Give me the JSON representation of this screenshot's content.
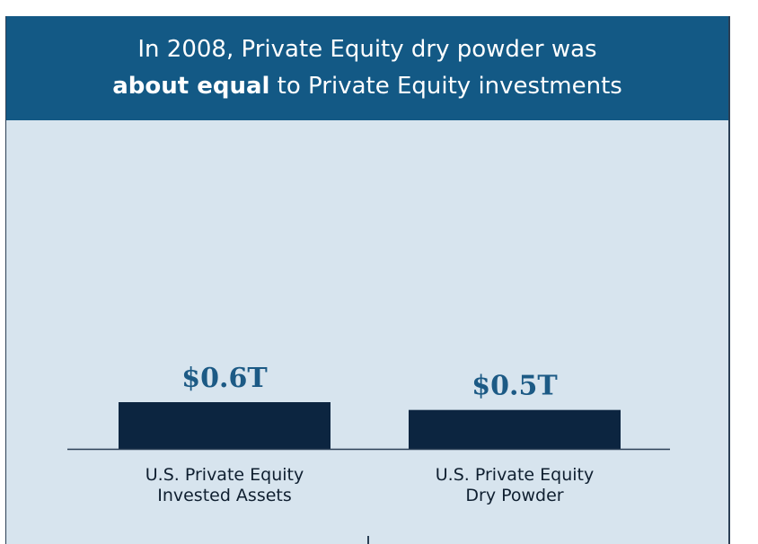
{
  "header": {
    "line1": "In 2008, Private Equity dry powder was",
    "line2_bold": "about equal",
    "line2_rest": " to Private Equity investments"
  },
  "colors": {
    "banner": "#135985",
    "panel": "#d7e4ee",
    "bar": "#0c2540",
    "value_label": "#1c5a85"
  },
  "chart_data": {
    "type": "bar",
    "categories": [
      [
        "U.S. Private Equity",
        "Invested Assets"
      ],
      [
        "U.S. Private Equity",
        "Dry Powder"
      ]
    ],
    "values": [
      0.6,
      0.5
    ],
    "data_labels": [
      "$0.6T",
      "$0.5T"
    ],
    "unit": "T",
    "title": "",
    "xlabel": "",
    "ylabel": "",
    "ylim": [
      0,
      1.2
    ],
    "grid": false
  }
}
